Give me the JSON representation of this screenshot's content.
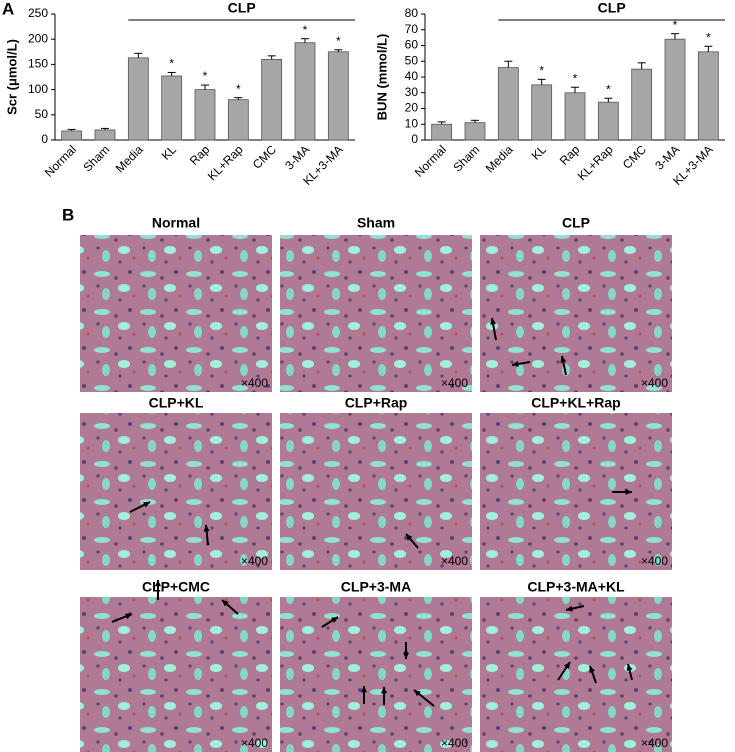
{
  "panel_labels": [
    "A",
    "B"
  ],
  "chart_data": [
    {
      "type": "bar",
      "y_label": "Scr (μmol/L)",
      "annotation": "CLP",
      "categories": [
        "Normal",
        "Sham",
        "Media",
        "KL",
        "Rap",
        "KL+Rap",
        "CMC",
        "3-MA",
        "KL+3-MA"
      ],
      "values": [
        18,
        20,
        163,
        127,
        100,
        80,
        160,
        193,
        175
      ],
      "errors": [
        3,
        3,
        9,
        7,
        9,
        4,
        7,
        8,
        4
      ],
      "significance": [
        null,
        null,
        null,
        "*",
        "*",
        "*",
        null,
        "*",
        "*"
      ],
      "color": "#a6a6a6",
      "ylim": [
        0,
        250
      ],
      "yticks": [
        0,
        50,
        100,
        150,
        200,
        250
      ]
    },
    {
      "type": "bar",
      "y_label": "BUN (mmol/L)",
      "annotation": "CLP",
      "categories": [
        "Normal",
        "Sham",
        "Media",
        "KL",
        "Rap",
        "KL+Rap",
        "CMC",
        "3-MA",
        "KL+3-MA"
      ],
      "values": [
        10,
        11,
        46,
        35,
        30,
        24,
        45,
        64,
        56
      ],
      "errors": [
        1.5,
        1.5,
        4,
        3.5,
        3.5,
        2.5,
        4,
        3.5,
        3.5
      ],
      "significance": [
        null,
        null,
        null,
        "*",
        "*",
        "*",
        null,
        "*",
        "*"
      ],
      "color": "#a6a6a6",
      "ylim": [
        0,
        80
      ],
      "yticks": [
        0,
        10,
        20,
        30,
        40,
        50,
        60,
        70,
        80
      ]
    }
  ],
  "panel_b": {
    "images": [
      {
        "title": "Normal",
        "magnification": "×400"
      },
      {
        "title": "Sham",
        "magnification": "×400"
      },
      {
        "title": "CLP",
        "magnification": "×400"
      },
      {
        "title": "CLP+KL",
        "magnification": "×400"
      },
      {
        "title": "CLP+Rap",
        "magnification": "×400"
      },
      {
        "title": "CLP+KL+Rap",
        "magnification": "×400"
      },
      {
        "title": "CLP+CMC",
        "magnification": "×400"
      },
      {
        "title": "CLP+3-MA",
        "magnification": "×400"
      },
      {
        "title": "CLP+3-MA+KL",
        "magnification": "×400"
      }
    ]
  }
}
